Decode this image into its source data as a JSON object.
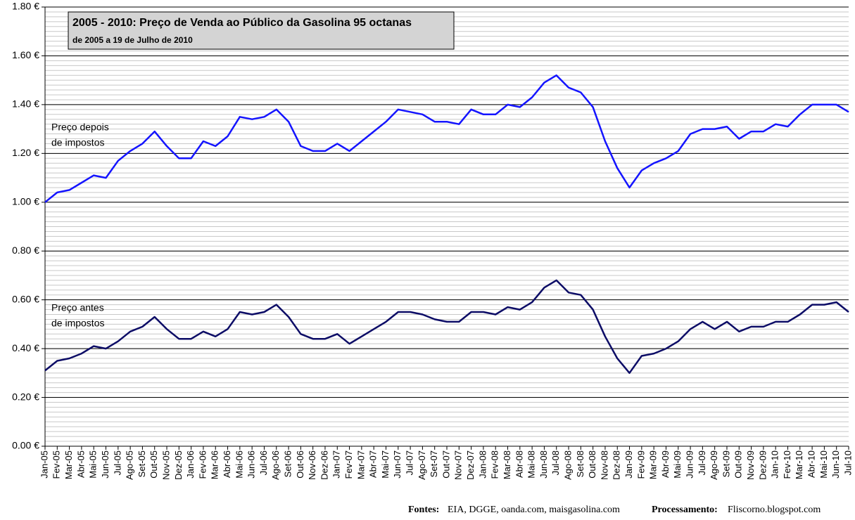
{
  "chart_data": {
    "type": "line",
    "title": "2005 - 2010: Preço de Venda ao Público da Gasolina 95 octanas",
    "subtitle": "de 2005 a 19 de Julho de 2010",
    "categories": [
      "Jan-05",
      "Fev-05",
      "Mar-05",
      "Abr-05",
      "Mai-05",
      "Jun-05",
      "Jul-05",
      "Ago-05",
      "Set-05",
      "Out-05",
      "Nov-05",
      "Dez-05",
      "Jan-06",
      "Fev-06",
      "Mar-06",
      "Abr-06",
      "Mai-06",
      "Jun-06",
      "Jul-06",
      "Ago-06",
      "Set-06",
      "Out-06",
      "Nov-06",
      "Dez-06",
      "Jan-07",
      "Fev-07",
      "Mar-07",
      "Abr-07",
      "Mai-07",
      "Jun-07",
      "Jul-07",
      "Ago-07",
      "Set-07",
      "Out-07",
      "Nov-07",
      "Dez-07",
      "Jan-08",
      "Fev-08",
      "Mar-08",
      "Abr-08",
      "Mai-08",
      "Jun-08",
      "Jul-08",
      "Ago-08",
      "Set-08",
      "Out-08",
      "Nov-08",
      "Dez-08",
      "Jan-09",
      "Fev-09",
      "Mar-09",
      "Abr-09",
      "Mai-09",
      "Jun-09",
      "Jul-09",
      "Ago-09",
      "Set-09",
      "Out-09",
      "Nov-09",
      "Dez-09",
      "Jan-10",
      "Fev-10",
      "Mar-10",
      "Abr-10",
      "Mai-10",
      "Jun-10",
      "Jul-10"
    ],
    "series": [
      {
        "label_lines": [
          "Preço depois",
          "de impostos"
        ],
        "color": "#1414ff",
        "values": [
          1.0,
          1.04,
          1.05,
          1.08,
          1.11,
          1.1,
          1.17,
          1.21,
          1.24,
          1.29,
          1.23,
          1.18,
          1.18,
          1.25,
          1.23,
          1.27,
          1.35,
          1.34,
          1.35,
          1.38,
          1.33,
          1.23,
          1.21,
          1.21,
          1.24,
          1.21,
          1.25,
          1.29,
          1.33,
          1.38,
          1.37,
          1.36,
          1.33,
          1.33,
          1.32,
          1.38,
          1.36,
          1.36,
          1.4,
          1.39,
          1.43,
          1.49,
          1.52,
          1.47,
          1.45,
          1.39,
          1.25,
          1.14,
          1.06,
          1.13,
          1.16,
          1.18,
          1.21,
          1.28,
          1.3,
          1.3,
          1.31,
          1.26,
          1.29,
          1.29,
          1.32,
          1.31,
          1.36,
          1.4,
          1.4,
          1.4,
          1.37
        ]
      },
      {
        "label_lines": [
          "Preço antes",
          "de impostos"
        ],
        "color": "#0c0c66",
        "values": [
          0.31,
          0.35,
          0.36,
          0.38,
          0.41,
          0.4,
          0.43,
          0.47,
          0.49,
          0.53,
          0.48,
          0.44,
          0.44,
          0.47,
          0.45,
          0.48,
          0.55,
          0.54,
          0.55,
          0.58,
          0.53,
          0.46,
          0.44,
          0.44,
          0.46,
          0.42,
          0.45,
          0.48,
          0.51,
          0.55,
          0.55,
          0.54,
          0.52,
          0.51,
          0.51,
          0.55,
          0.55,
          0.54,
          0.57,
          0.56,
          0.59,
          0.65,
          0.68,
          0.63,
          0.62,
          0.56,
          0.45,
          0.36,
          0.3,
          0.37,
          0.38,
          0.4,
          0.43,
          0.48,
          0.51,
          0.48,
          0.51,
          0.47,
          0.49,
          0.49,
          0.51,
          0.51,
          0.54,
          0.58,
          0.58,
          0.59,
          0.55
        ]
      }
    ],
    "ylim": [
      0,
      1.8
    ],
    "yticks": [
      {
        "value": 0,
        "label": "0.00 €"
      },
      {
        "value": 0.2,
        "label": "0.20 €"
      },
      {
        "value": 0.4,
        "label": "0.40 €"
      },
      {
        "value": 0.6,
        "label": "0.60 €"
      },
      {
        "value": 0.8,
        "label": "0.80 €"
      },
      {
        "value": 1.0,
        "label": "1.00 €"
      },
      {
        "value": 1.2,
        "label": "1.20 €"
      },
      {
        "value": 1.4,
        "label": "1.40 €"
      },
      {
        "value": 1.6,
        "label": "1.60 €"
      },
      {
        "value": 1.8,
        "label": "1.80 €"
      }
    ],
    "minor_grid_step": 0.02,
    "grid": true,
    "footer": {
      "sources_label": "Fontes:",
      "sources": "EIA, DGGE, oanda.com, maisgasolina.com",
      "processing_label": "Processamento:",
      "processing": "Fliscorno.blogspot.com"
    }
  }
}
